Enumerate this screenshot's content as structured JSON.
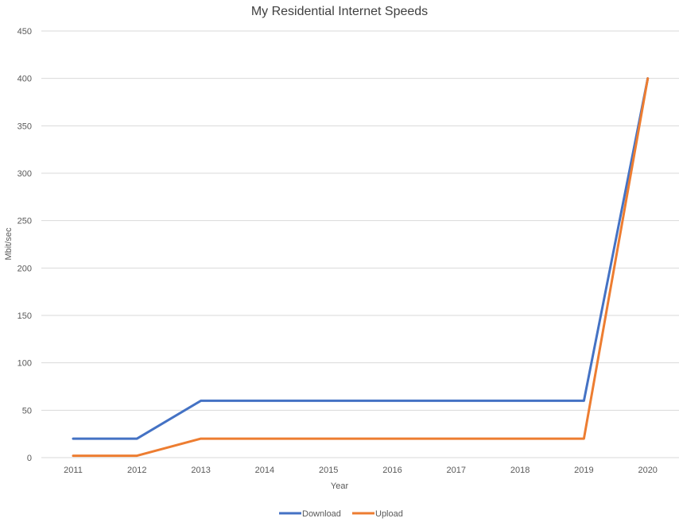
{
  "chart_data": {
    "type": "line",
    "title": "My Residential Internet Speeds",
    "xlabel": "Year",
    "ylabel": "Mbit/sec",
    "categories": [
      "2011",
      "2012",
      "2013",
      "2014",
      "2015",
      "2016",
      "2017",
      "2018",
      "2019",
      "2020"
    ],
    "yticks": [
      0,
      50,
      100,
      150,
      200,
      250,
      300,
      350,
      400,
      450
    ],
    "ylim": [
      0,
      450
    ],
    "grid": true,
    "legend_position": "bottom",
    "series": [
      {
        "name": "Download",
        "color": "#4472c4",
        "values": [
          20,
          20,
          60,
          60,
          60,
          60,
          60,
          60,
          60,
          400
        ]
      },
      {
        "name": "Upload",
        "color": "#ed7d31",
        "values": [
          2,
          2,
          20,
          20,
          20,
          20,
          20,
          20,
          20,
          400
        ]
      }
    ]
  }
}
